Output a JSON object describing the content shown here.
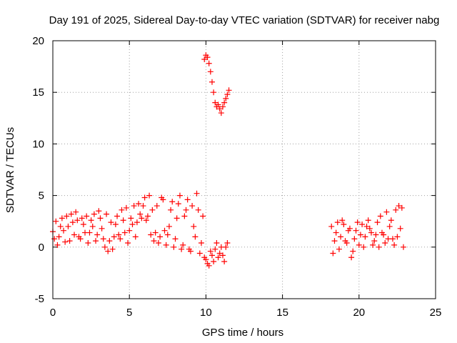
{
  "chart_data": {
    "type": "scatter",
    "title": "Day 191 of 2025, Sidereal Day-to-day VTEC variation (SDTVAR) for receiver nabg",
    "xlabel": "GPS time / hours",
    "ylabel": "SDTVAR / TECUs",
    "xlim": [
      0,
      25
    ],
    "ylim": [
      -5,
      20
    ],
    "x_ticks": [
      0,
      5,
      10,
      15,
      20,
      25
    ],
    "y_ticks": [
      -5,
      0,
      5,
      10,
      15,
      20
    ],
    "x_tick_labels": [
      "0",
      "5",
      "10",
      "15",
      "20",
      "25"
    ],
    "y_tick_labels": [
      "-5",
      "0",
      "5",
      "10",
      "15",
      "20"
    ],
    "grid": true,
    "marker": "+",
    "series": [
      {
        "name": "SDTVAR",
        "color": "#ff0000",
        "segments": [
          {
            "x": [
              0.0,
              0.2,
              0.4,
              0.6,
              0.8,
              1.0,
              1.2,
              1.4,
              1.6,
              1.8,
              2.0,
              2.2,
              2.4,
              2.6,
              2.8,
              3.0,
              3.2,
              3.4,
              3.6,
              3.8,
              4.0,
              4.2,
              4.4,
              4.6,
              4.8,
              5.0,
              5.2,
              5.4,
              5.6,
              5.8,
              6.0,
              6.2,
              6.4,
              6.6,
              6.8,
              7.0,
              7.2,
              7.4,
              7.6,
              7.8,
              8.0,
              8.2,
              8.4,
              8.6,
              8.8,
              9.0,
              9.2,
              9.4,
              9.6,
              9.8,
              10.0,
              10.2,
              10.4,
              10.6,
              10.8,
              11.0,
              11.2,
              11.4
            ],
            "y": [
              1.5,
              2.5,
              1.0,
              2.8,
              0.5,
              2.0,
              3.2,
              1.2,
              2.6,
              0.8,
              2.2,
              3.0,
              1.4,
              2.0,
              0.6,
              3.5,
              1.8,
              0.0,
              -0.4,
              2.4,
              1.0,
              3.0,
              0.8,
              2.6,
              3.8,
              1.6,
              2.2,
              1.0,
              4.2,
              2.8,
              4.8,
              3.0,
              1.2,
              0.6,
              4.0,
              1.0,
              4.6,
              0.2,
              2.0,
              4.4,
              0.8,
              4.2,
              -0.2,
              3.0,
              4.6,
              -0.4,
              2.0,
              5.2,
              -0.6,
              3.0,
              -1.2,
              -1.8,
              -0.8,
              -0.2,
              -1.0,
              0.0,
              -1.4,
              0.4
            ]
          },
          {
            "x": [
              0.1,
              0.3,
              0.5,
              0.7,
              0.9,
              1.1,
              1.3,
              1.5,
              1.7,
              1.9,
              2.1,
              2.3,
              2.5,
              2.7,
              2.9,
              3.1,
              3.3,
              3.5,
              3.7,
              3.9,
              4.1,
              4.3,
              4.5,
              4.7,
              4.9,
              5.1,
              5.3,
              5.5,
              5.7,
              5.9,
              6.1,
              6.3,
              6.5,
              6.7,
              6.9,
              7.1,
              7.3,
              7.5,
              7.7,
              7.9,
              8.1,
              8.3,
              8.5,
              8.7,
              8.9,
              9.1,
              9.3,
              9.5,
              9.7,
              9.9,
              10.1,
              10.3,
              10.5,
              10.7,
              10.9,
              11.1,
              11.3
            ],
            "y": [
              0.8,
              0.2,
              2.0,
              1.6,
              3.0,
              0.6,
              2.4,
              3.4,
              1.0,
              2.8,
              1.4,
              0.4,
              2.6,
              3.2,
              1.2,
              2.8,
              0.8,
              3.2,
              0.6,
              -0.2,
              2.2,
              1.2,
              3.6,
              1.4,
              0.4,
              2.8,
              4.0,
              2.4,
              3.2,
              4.0,
              2.6,
              5.0,
              3.6,
              1.4,
              0.4,
              4.8,
              1.6,
              1.2,
              3.6,
              0.0,
              2.8,
              5.0,
              0.2,
              3.6,
              -0.2,
              4.0,
              1.0,
              3.6,
              0.4,
              -1.0,
              -1.6,
              -0.4,
              -1.4,
              0.4,
              -0.6,
              -0.8,
              0.0
            ]
          },
          {
            "x": [
              9.9,
              10.0,
              10.1,
              10.2,
              10.3,
              10.4,
              10.5,
              10.6,
              10.7,
              10.8,
              10.9,
              11.0,
              11.1,
              11.2,
              11.3,
              11.4,
              11.5
            ],
            "y": [
              18.2,
              18.6,
              18.4,
              17.8,
              17.0,
              16.0,
              15.0,
              14.0,
              13.6,
              13.8,
              13.4,
              13.0,
              13.6,
              14.0,
              14.4,
              14.8,
              15.2
            ]
          },
          {
            "x": [
              18.2,
              18.4,
              18.6,
              18.8,
              19.0,
              19.2,
              19.4,
              19.6,
              19.8,
              20.0,
              20.2,
              20.4,
              20.6,
              20.8,
              21.0,
              21.2,
              21.4,
              21.6,
              21.8,
              22.0,
              22.2,
              22.4,
              22.6,
              22.8
            ],
            "y": [
              2.0,
              0.6,
              2.4,
              1.0,
              2.2,
              0.4,
              1.8,
              -0.4,
              1.6,
              0.2,
              2.2,
              1.0,
              2.6,
              1.4,
              0.6,
              2.4,
              3.0,
              1.2,
              3.4,
              2.0,
              0.8,
              3.6,
              4.0,
              3.8
            ]
          },
          {
            "x": [
              18.3,
              18.5,
              18.7,
              18.9,
              19.1,
              19.3,
              19.5,
              19.7,
              19.9,
              20.1,
              20.3,
              20.5,
              20.7,
              20.9,
              21.1,
              21.3,
              21.5,
              21.7,
              21.9,
              22.1,
              22.3,
              22.5,
              22.7,
              22.9
            ],
            "y": [
              -0.6,
              1.4,
              -0.2,
              2.6,
              0.6,
              1.6,
              -1.0,
              0.8,
              2.4,
              1.2,
              0.0,
              2.0,
              1.8,
              0.2,
              1.2,
              0.0,
              1.4,
              0.4,
              0.8,
              2.6,
              0.2,
              1.0,
              1.8,
              0.0
            ]
          }
        ]
      }
    ]
  }
}
